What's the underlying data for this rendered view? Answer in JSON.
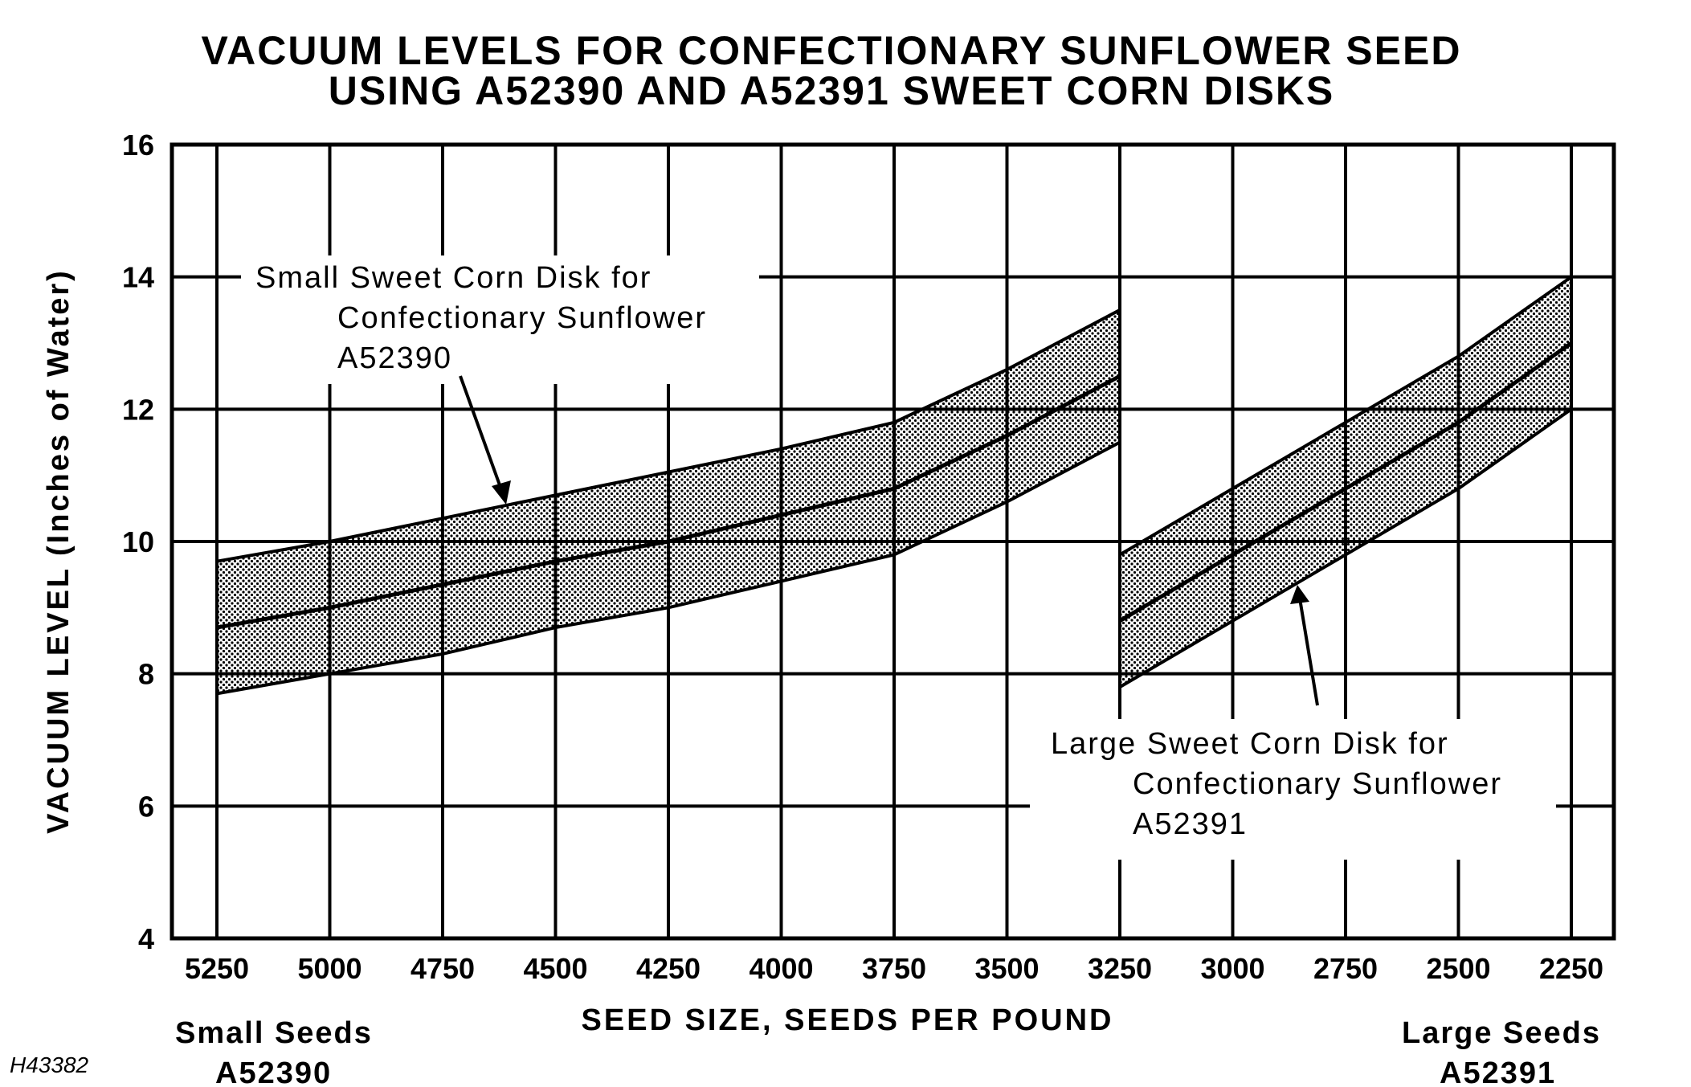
{
  "chart_data": {
    "type": "area",
    "title_lines": [
      "VACUUM LEVELS FOR CONFECTIONARY SUNFLOWER SEED",
      "USING A52390 AND A52391 SWEET CORN DISKS"
    ],
    "xlabel": "SEED SIZE, SEEDS PER POUND",
    "ylabel": "VACUUM LEVEL (Inches of Water)",
    "x_ticks": [
      "5250",
      "5000",
      "4750",
      "4500",
      "4250",
      "4000",
      "3750",
      "3500",
      "3250",
      "3000",
      "2750",
      "2500",
      "2250"
    ],
    "y_ticks": [
      "16",
      "14",
      "12",
      "10",
      "8",
      "6",
      "4"
    ],
    "ylim": [
      4,
      16
    ],
    "x_range": [
      5250,
      2250
    ],
    "x_reversed": true,
    "grid": true,
    "series": [
      {
        "name": "Small Sweet Corn Disk for Confectionary Sunflower A52390",
        "x": [
          5250,
          5000,
          4750,
          4500,
          4250,
          4000,
          3750,
          3500,
          3250
        ],
        "center": [
          8.7,
          9.0,
          9.35,
          9.7,
          10.0,
          10.4,
          10.8,
          11.6,
          12.5
        ],
        "upper": [
          9.7,
          10.0,
          10.35,
          10.7,
          11.05,
          11.4,
          11.8,
          12.6,
          13.5
        ],
        "lower": [
          7.7,
          8.0,
          8.3,
          8.7,
          9.0,
          9.4,
          9.8,
          10.6,
          11.5
        ]
      },
      {
        "name": "Large Sweet Corn Disk for Confectionary Sunflower A52391",
        "x": [
          3250,
          3000,
          2750,
          2500,
          2250
        ],
        "center": [
          8.8,
          9.8,
          10.8,
          11.8,
          13.0
        ],
        "upper": [
          9.8,
          10.8,
          11.8,
          12.8,
          14.0
        ],
        "lower": [
          7.8,
          8.8,
          9.8,
          10.8,
          12.0
        ]
      }
    ],
    "annotations": {
      "small_disk": [
        "Small Sweet Corn Disk for",
        "Confectionary Sunflower",
        "A52390"
      ],
      "large_disk": [
        "Large Sweet Corn Disk for",
        "Confectionary Sunflower",
        "A52391"
      ]
    },
    "corner_labels": {
      "left": [
        "Small Seeds",
        "A52390"
      ],
      "right": [
        "Large Seeds",
        "A52391"
      ]
    },
    "figure_id": "H43382"
  }
}
